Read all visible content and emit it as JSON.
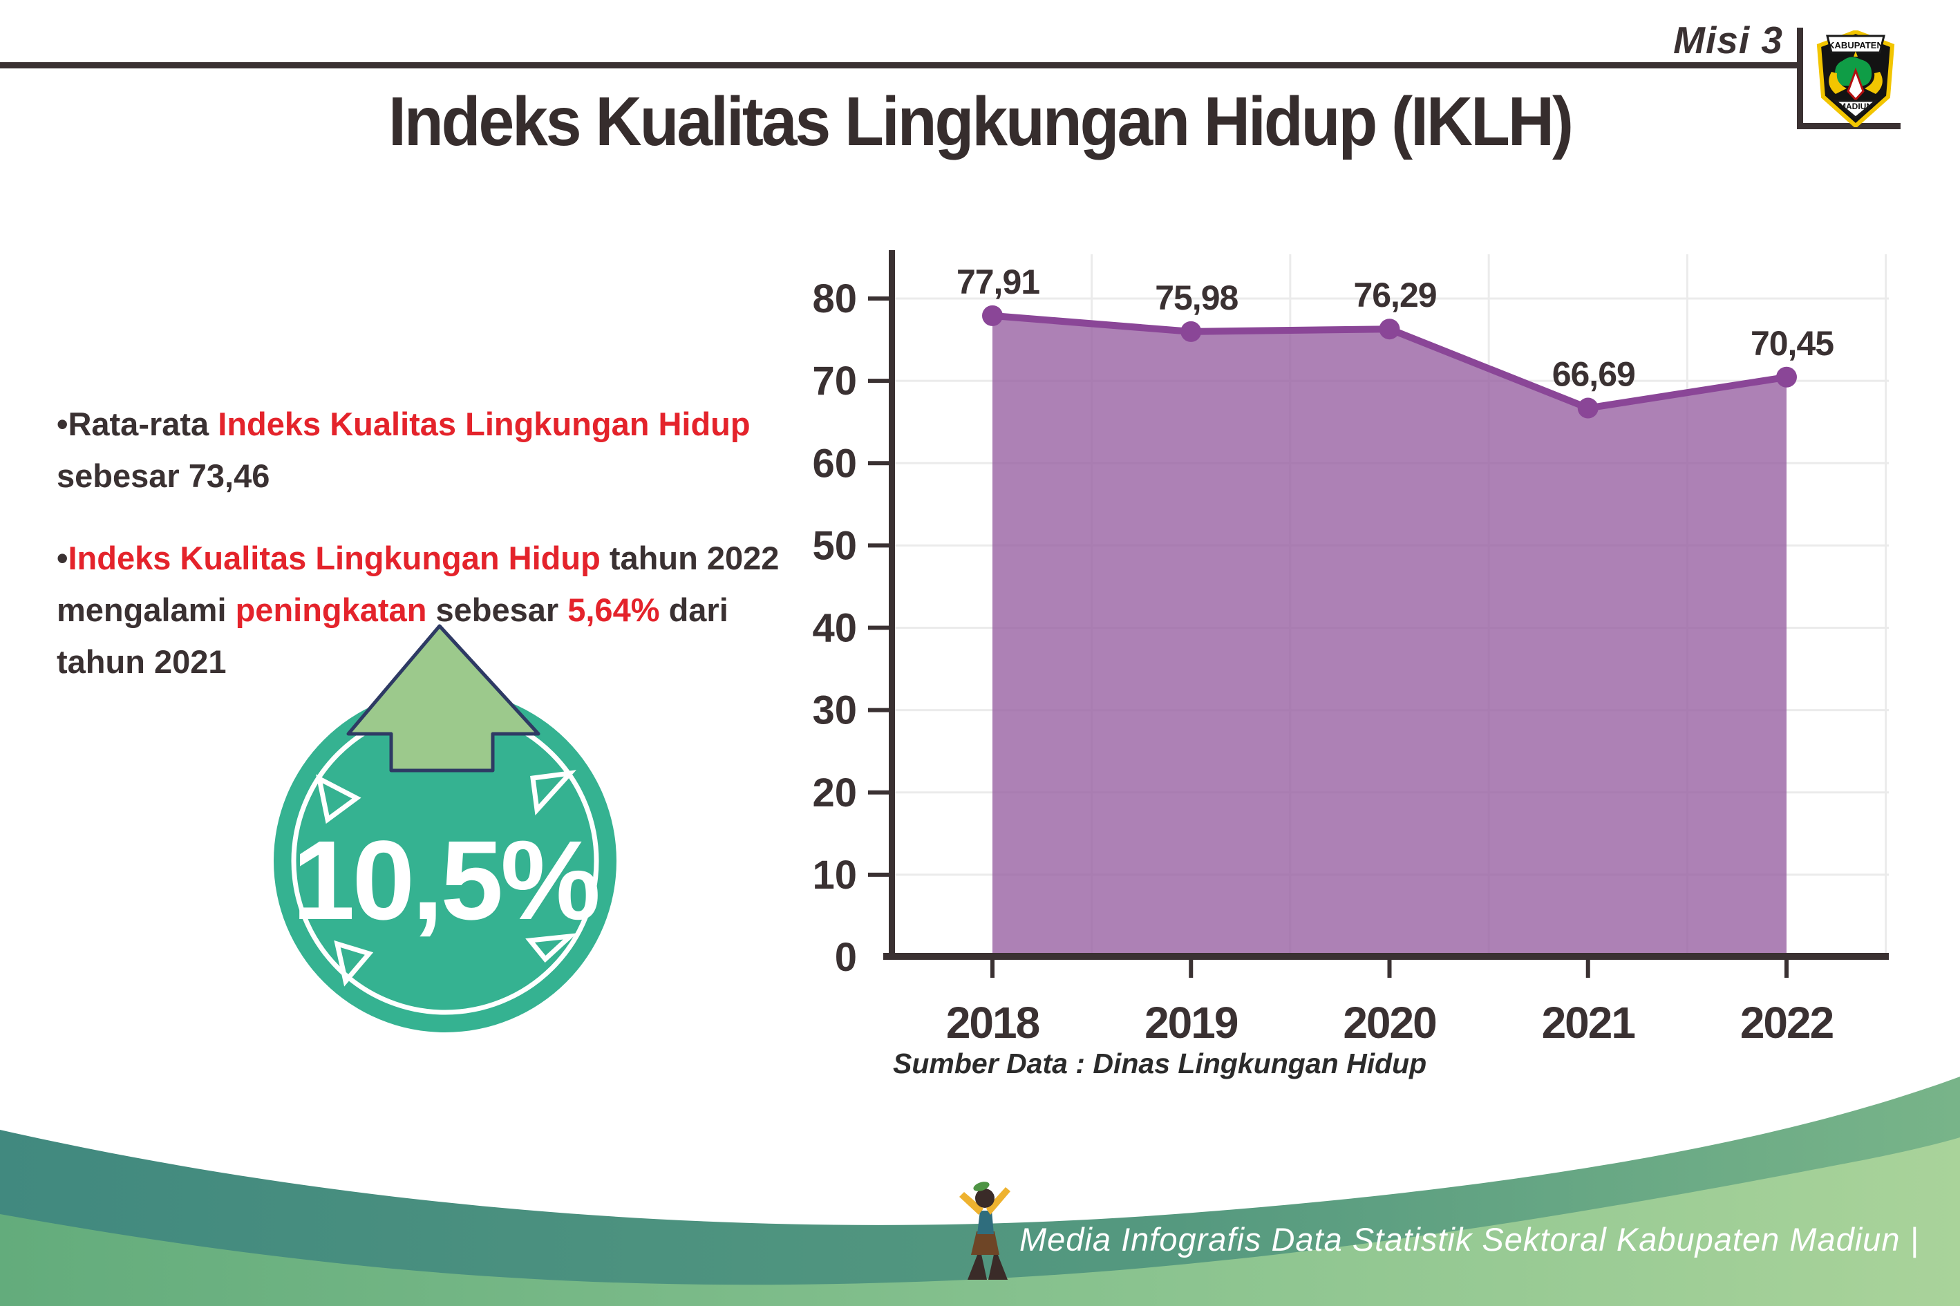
{
  "header": {
    "misi_label": "Misi 3",
    "title": "Indeks Kualitas Lingkungan Hidup (IKLH)",
    "logo_top": "KABUPATEN",
    "logo_bottom": "MADIUN"
  },
  "bullets": {
    "b1": {
      "p1": "•Rata-rata ",
      "p2": "Indeks Kualitas Lingkungan Hidup",
      "p3": "sebesar 73,46"
    },
    "b2": {
      "p1": "•",
      "p2": "Indeks Kualitas Lingkungan Hidup",
      "p3": " tahun 2022",
      "p4": "mengalami ",
      "p5": "peningkatan",
      "p6": " sebesar ",
      "p7": "5,64%",
      "p8": " dari",
      "p9": "tahun 2021"
    }
  },
  "badge": {
    "value": "10,5%"
  },
  "chart_data": {
    "type": "area",
    "title": "",
    "categories": [
      "2018",
      "2019",
      "2020",
      "2021",
      "2022"
    ],
    "values": [
      77.91,
      75.98,
      76.29,
      66.69,
      70.45
    ],
    "value_labels": [
      "77,91",
      "75,98",
      "76,29",
      "66,69",
      "70,45"
    ],
    "xlabel": "",
    "ylabel": "",
    "ylim": [
      0,
      80
    ],
    "ytick_step": 10,
    "grid": true,
    "legend": false,
    "line_color": "#8a4697",
    "marker_color": "#8a4697",
    "fill_color": "rgba(150,94,160,0.78)",
    "axis_color": "#3a3132",
    "source_note": "Sumber Data : Dinas Lingkungan Hidup"
  },
  "footer": {
    "credit": "Media Infografis Data Statistik Sektoral Kabupaten Madiun |"
  }
}
